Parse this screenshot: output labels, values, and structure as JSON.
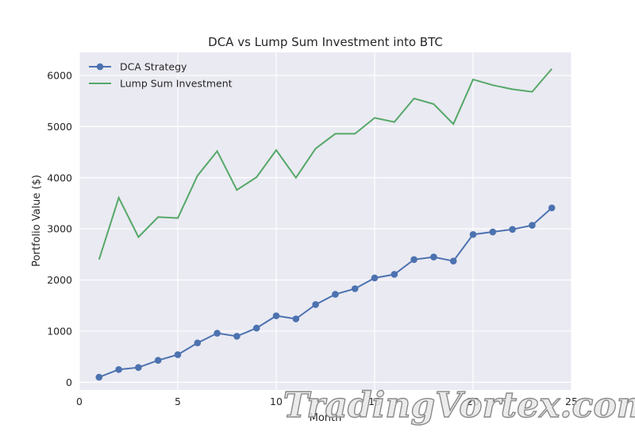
{
  "chart_data": {
    "type": "line",
    "title": "DCA vs Lump Sum Investment into BTC",
    "xlabel": "Month",
    "ylabel": "Portfolio Value ($)",
    "xlim": [
      0,
      25
    ],
    "ylim": [
      -150,
      6450
    ],
    "x_ticks": [
      0,
      5,
      10,
      15,
      20,
      25
    ],
    "y_ticks": [
      0,
      1000,
      2000,
      3000,
      4000,
      5000,
      6000
    ],
    "grid": true,
    "legend_position": "top-left",
    "x": [
      1,
      2,
      3,
      4,
      5,
      6,
      7,
      8,
      9,
      10,
      11,
      12,
      13,
      14,
      15,
      16,
      17,
      18,
      19,
      20,
      21,
      22,
      23,
      24
    ],
    "series": [
      {
        "name": "DCA Strategy",
        "color": "#4c72b0",
        "marker": "circle",
        "values": [
          100,
          250,
          290,
          430,
          540,
          770,
          960,
          900,
          1060,
          1300,
          1240,
          1520,
          1720,
          1830,
          2040,
          2110,
          2400,
          2450,
          2370,
          2890,
          2940,
          2990,
          3070,
          3410
        ]
      },
      {
        "name": "Lump Sum Investment",
        "color": "#55a868",
        "marker": "none",
        "values": [
          2400,
          3610,
          2840,
          3230,
          3210,
          4040,
          4520,
          3760,
          4010,
          4540,
          4000,
          4570,
          4860,
          4860,
          5170,
          5090,
          5550,
          5440,
          5050,
          5920,
          5810,
          5730,
          5680,
          6130
        ]
      }
    ]
  },
  "watermark": {
    "text": "TradingVortex.com"
  }
}
